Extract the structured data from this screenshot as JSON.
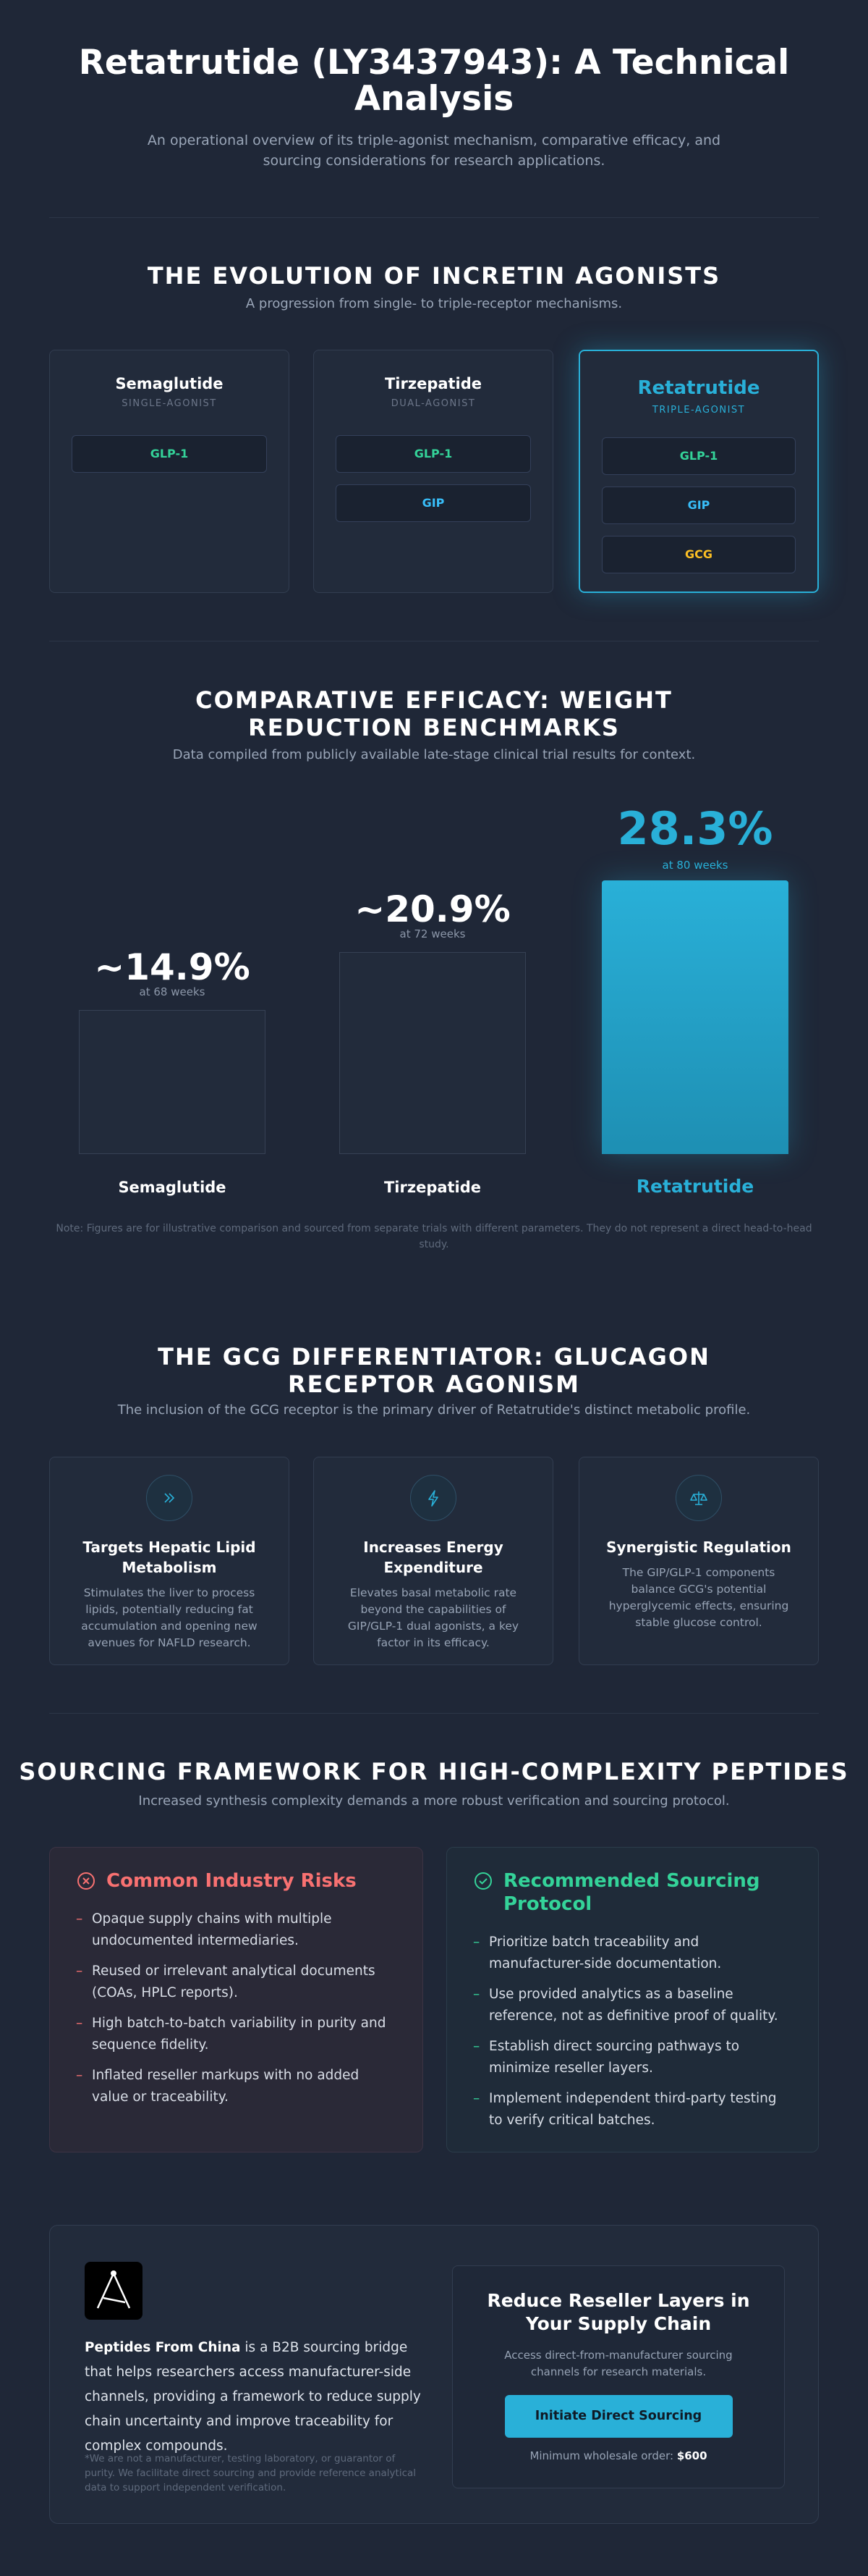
{
  "header": {
    "title": "Retatrutide (LY3437943): A Technical Analysis",
    "subtitle": "An operational overview of its triple-agonist mechanism, comparative efficacy, and sourcing considerations for research applications."
  },
  "evolution": {
    "title": "THE EVOLUTION OF INCRETIN AGONISTS",
    "subtitle": "A progression from single- to triple-receptor mechanisms.",
    "cards": [
      {
        "name": "Semaglutide",
        "type": "SINGLE-AGONIST",
        "receptors": [
          "GLP-1"
        ]
      },
      {
        "name": "Tirzepatide",
        "type": "DUAL-AGONIST",
        "receptors": [
          "GLP-1",
          "GIP"
        ]
      },
      {
        "name": "Retatrutide",
        "type": "TRIPLE-AGONIST",
        "receptors": [
          "GLP-1",
          "GIP",
          "GCG"
        ]
      }
    ]
  },
  "chart_data": {
    "type": "bar",
    "title": "COMPARATIVE EFFICACY: WEIGHT REDUCTION BENCHMARKS",
    "subtitle": "Data compiled from publicly available late-stage clinical trial results for context.",
    "categories": [
      "Semaglutide",
      "Tirzepatide",
      "Retatrutide"
    ],
    "values": [
      14.9,
      20.9,
      28.3
    ],
    "value_labels": [
      "~14.9%",
      "~20.9%",
      "28.3%"
    ],
    "annotations": [
      "at 68 weeks",
      "at 72 weeks",
      "at 80 weeks"
    ],
    "color": "#29b0d8",
    "note": "Note: Figures are for illustrative comparison and sourced from separate trials with different parameters. They do not represent a direct head-to-head study."
  },
  "gcg": {
    "title": "THE GCG DIFFERENTIATOR: GLUCAGON RECEPTOR AGONISM",
    "subtitle": "The inclusion of the GCG receptor is the primary driver of Retatrutide's distinct metabolic profile.",
    "cards": [
      {
        "title": "Targets Hepatic Lipid Metabolism",
        "text": "Stimulates the liver to process lipids, potentially reducing fat accumulation and opening new avenues for NAFLD research."
      },
      {
        "title": "Increases Energy Expenditure",
        "text": "Elevates basal metabolic rate beyond the capabilities of GIP/GLP-1 dual agonists, a key factor in its efficacy."
      },
      {
        "title": "Synergistic Regulation",
        "text": "The GIP/GLP-1 components balance GCG's potential hyperglycemic effects, ensuring stable glucose control."
      }
    ]
  },
  "sourcing": {
    "title": "SOURCING FRAMEWORK FOR HIGH-COMPLEXITY PEPTIDES",
    "subtitle": "Increased synthesis complexity demands a more robust verification and sourcing protocol.",
    "risks": {
      "title": "Common Industry Risks",
      "items": [
        "Opaque supply chains with multiple undocumented intermediaries.",
        "Reused or irrelevant analytical documents (COAs, HPLC reports).",
        "High batch-to-batch variability in purity and sequence fidelity.",
        "Inflated reseller markups with no added value or traceability."
      ]
    },
    "protocol": {
      "title": "Recommended Sourcing Protocol",
      "items": [
        "Prioritize batch traceability and manufacturer-side documentation.",
        "Use provided analytics as a baseline reference, not as definitive proof of quality.",
        "Establish direct sourcing pathways to minimize reseller layers.",
        "Implement independent third-party testing to verify critical batches."
      ]
    }
  },
  "footer": {
    "brand": "Peptides From China",
    "description": " is a B2B sourcing bridge that helps researchers access manufacturer-side channels, providing a framework to reduce supply chain uncertainty and improve traceability for complex compounds.",
    "disclaimer": "*We are not a manufacturer, testing laboratory, or guarantor of purity. We facilitate direct sourcing and provide reference analytical data to support independent verification.",
    "cta": {
      "title": "Reduce Reseller Layers in Your Supply Chain",
      "text": "Access direct-from-manufacturer sourcing channels for research materials.",
      "button": "Initiate Direct Sourcing",
      "min_order_label": "Minimum wholesale order:",
      "min_order_value": "$600"
    }
  }
}
